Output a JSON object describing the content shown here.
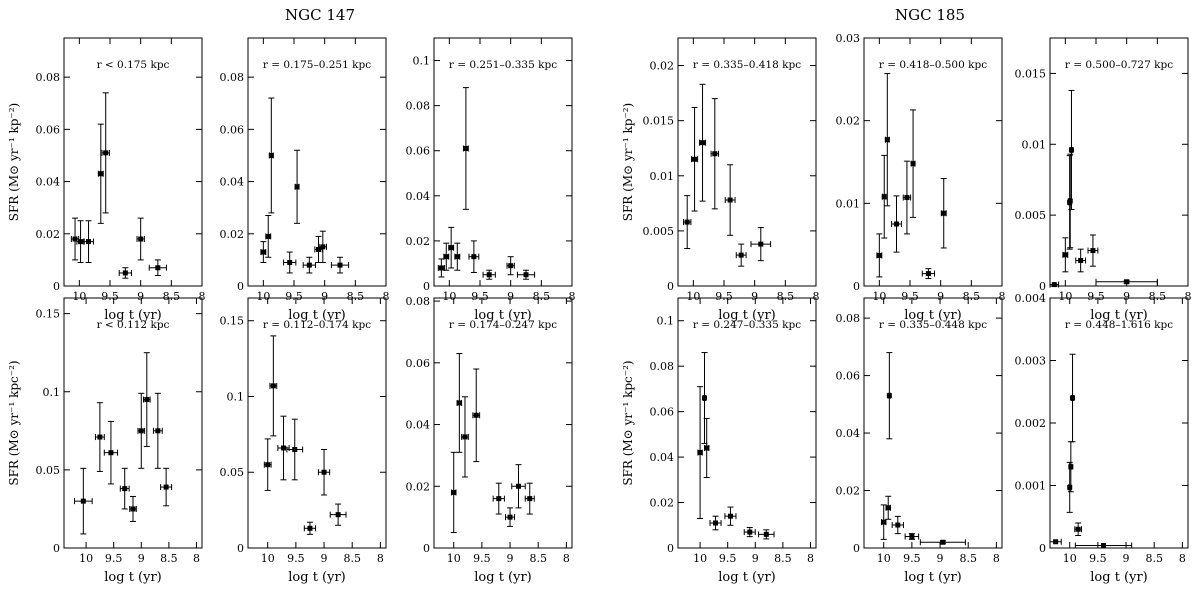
{
  "figure": {
    "left_title": "NGC 147",
    "right_title": "NGC 185",
    "xlabel": "log t (yr)",
    "ylabel_top": "SFR (M⊙ yr⁻¹ kp⁻²)",
    "ylabel_bottom": "SFR (M⊙ yr⁻¹ kpc⁻²)"
  },
  "chart_data": [
    {
      "type": "scatter",
      "galaxy": "NGC 147",
      "label": "r < 0.175 kpc",
      "xlim": [
        10.25,
        8
      ],
      "ylim": [
        0,
        0.095
      ],
      "xticks": [
        10,
        9.5,
        9,
        8.5,
        8
      ],
      "yticks": [
        0,
        0.02,
        0.04,
        0.06,
        0.08
      ],
      "points": [
        [
          10.07,
          0.018,
          0.06,
          0.008
        ],
        [
          9.98,
          0.017,
          0.06,
          0.008
        ],
        [
          9.85,
          0.017,
          0.08,
          0.008
        ],
        [
          9.65,
          0.043,
          0.04,
          0.019
        ],
        [
          9.57,
          0.051,
          0.06,
          0.023
        ],
        [
          9.25,
          0.005,
          0.1,
          0.002
        ],
        [
          9.0,
          0.018,
          0.06,
          0.008
        ],
        [
          8.72,
          0.007,
          0.14,
          0.003
        ]
      ]
    },
    {
      "type": "scatter",
      "galaxy": "NGC 147",
      "label": "r = 0.175–0.251 kpc",
      "xlim": [
        10.25,
        8
      ],
      "ylim": [
        0,
        0.095
      ],
      "xticks": [
        10,
        9.5,
        9,
        8.5,
        8
      ],
      "yticks": [
        0,
        0.02,
        0.04,
        0.06,
        0.08
      ],
      "points": [
        [
          10.0,
          0.013,
          0.04,
          0.004
        ],
        [
          9.92,
          0.019,
          0.04,
          0.008
        ],
        [
          9.87,
          0.05,
          0.03,
          0.022
        ],
        [
          9.57,
          0.009,
          0.1,
          0.004
        ],
        [
          9.45,
          0.038,
          0.03,
          0.014
        ],
        [
          9.25,
          0.008,
          0.1,
          0.003
        ],
        [
          9.1,
          0.014,
          0.06,
          0.005
        ],
        [
          9.03,
          0.015,
          0.06,
          0.006
        ],
        [
          8.75,
          0.008,
          0.14,
          0.003
        ]
      ]
    },
    {
      "type": "scatter",
      "galaxy": "NGC 147",
      "label": "r = 0.251–0.335 kpc",
      "xlim": [
        10.25,
        8
      ],
      "ylim": [
        0,
        0.11
      ],
      "xticks": [
        10,
        9.5,
        9,
        8.5,
        8
      ],
      "yticks": [
        0,
        0.02,
        0.04,
        0.06,
        0.08,
        0.1
      ],
      "points": [
        [
          10.13,
          0.008,
          0.05,
          0.004
        ],
        [
          10.05,
          0.013,
          0.04,
          0.006
        ],
        [
          9.97,
          0.017,
          0.04,
          0.009
        ],
        [
          9.87,
          0.013,
          0.04,
          0.006
        ],
        [
          9.73,
          0.061,
          0.04,
          0.027
        ],
        [
          9.6,
          0.013,
          0.08,
          0.007
        ],
        [
          9.35,
          0.005,
          0.1,
          0.002
        ],
        [
          9.0,
          0.009,
          0.06,
          0.004
        ],
        [
          8.75,
          0.005,
          0.14,
          0.002
        ]
      ]
    },
    {
      "type": "scatter",
      "galaxy": "NGC 147",
      "label": "r = 0.335–0.418 kpc",
      "xlim": [
        10.25,
        8
      ],
      "ylim": [
        0,
        0.0225
      ],
      "xticks": [
        10,
        9.5,
        9,
        8.5,
        8
      ],
      "yticks": [
        0,
        0.005,
        0.01,
        0.015,
        0.02
      ],
      "points": [
        [
          10.1,
          0.0058,
          0.06,
          0.0024
        ],
        [
          9.98,
          0.0115,
          0.05,
          0.0047
        ],
        [
          9.85,
          0.013,
          0.05,
          0.0053
        ],
        [
          9.65,
          0.012,
          0.06,
          0.005
        ],
        [
          9.4,
          0.0078,
          0.08,
          0.0032
        ],
        [
          9.22,
          0.0028,
          0.08,
          0.001
        ],
        [
          8.9,
          0.0038,
          0.16,
          0.0015
        ]
      ]
    },
    {
      "type": "scatter",
      "galaxy": "NGC 147",
      "label": "r = 0.418–0.500 kpc",
      "xlim": [
        10.25,
        8
      ],
      "ylim": [
        0,
        0.03
      ],
      "xticks": [
        10,
        9.5,
        9,
        8.5,
        8
      ],
      "yticks": [
        0,
        0.01,
        0.02,
        0.03
      ],
      "points": [
        [
          10.0,
          0.0037,
          0.04,
          0.0026
        ],
        [
          9.92,
          0.0108,
          0.03,
          0.005
        ],
        [
          9.87,
          0.0177,
          0.03,
          0.008
        ],
        [
          9.72,
          0.0075,
          0.08,
          0.0034
        ],
        [
          9.55,
          0.0107,
          0.06,
          0.0044
        ],
        [
          9.45,
          0.0148,
          0.03,
          0.0065
        ],
        [
          9.2,
          0.0015,
          0.1,
          0.0006
        ],
        [
          8.95,
          0.0088,
          0.04,
          0.0042
        ]
      ]
    },
    {
      "type": "scatter",
      "galaxy": "NGC 147",
      "label": "r = 0.500–0.727 kpc",
      "xlim": [
        10.25,
        8
      ],
      "ylim": [
        0,
        0.0175
      ],
      "xticks": [
        10,
        9.5,
        9,
        8.5,
        8
      ],
      "yticks": [
        0,
        0.005,
        0.01,
        0.015
      ],
      "points": [
        [
          10.18,
          0.0001,
          0.07,
          0.0
        ],
        [
          10.0,
          0.0022,
          0.04,
          0.0012
        ],
        [
          9.93,
          0.0059,
          0.02,
          0.0033
        ],
        [
          9.92,
          0.006,
          0.02,
          0.0033
        ],
        [
          9.9,
          0.0096,
          0.02,
          0.0042
        ],
        [
          9.75,
          0.0018,
          0.08,
          0.0008
        ],
        [
          9.55,
          0.0025,
          0.08,
          0.0011
        ],
        [
          9.0,
          0.0003,
          0.5,
          0.0001
        ]
      ]
    },
    {
      "type": "scatter",
      "galaxy": "NGC 185",
      "label": "r < 0.112 kpc",
      "xlim": [
        10.4,
        7.9
      ],
      "ylim": [
        0,
        0.16
      ],
      "xticks": [
        10,
        9.5,
        9,
        8.5,
        8
      ],
      "yticks": [
        0,
        0.05,
        0.1,
        0.15
      ],
      "points": [
        [
          10.05,
          0.03,
          0.16,
          0.021
        ],
        [
          9.75,
          0.071,
          0.08,
          0.022
        ],
        [
          9.55,
          0.061,
          0.12,
          0.02
        ],
        [
          9.3,
          0.038,
          0.08,
          0.013
        ],
        [
          9.15,
          0.025,
          0.06,
          0.008
        ],
        [
          9.0,
          0.075,
          0.06,
          0.024
        ],
        [
          8.9,
          0.095,
          0.06,
          0.03
        ],
        [
          8.7,
          0.075,
          0.08,
          0.024
        ],
        [
          8.55,
          0.039,
          0.1,
          0.012
        ]
      ]
    },
    {
      "type": "scatter",
      "galaxy": "NGC 185",
      "label": "r = 0.112–0.174 kpc",
      "xlim": [
        10.35,
        7.9
      ],
      "ylim": [
        0,
        0.165
      ],
      "xticks": [
        10,
        9.5,
        9,
        8.5,
        8
      ],
      "yticks": [
        0,
        0.05,
        0.1,
        0.15
      ],
      "points": [
        [
          10.0,
          0.055,
          0.06,
          0.017
        ],
        [
          9.9,
          0.107,
          0.06,
          0.033
        ],
        [
          9.72,
          0.066,
          0.1,
          0.021
        ],
        [
          9.52,
          0.065,
          0.14,
          0.02
        ],
        [
          9.25,
          0.013,
          0.1,
          0.004
        ],
        [
          9.0,
          0.05,
          0.1,
          0.015
        ],
        [
          8.75,
          0.022,
          0.14,
          0.007
        ]
      ]
    },
    {
      "type": "scatter",
      "galaxy": "NGC 185",
      "label": "r = 0.174–0.247 kpc",
      "xlim": [
        10.35,
        7.9
      ],
      "ylim": [
        0,
        0.081
      ],
      "xticks": [
        10,
        9.5,
        9,
        8.5,
        8
      ],
      "yticks": [
        0,
        0.02,
        0.04,
        0.06,
        0.08
      ],
      "points": [
        [
          10.0,
          0.018,
          0.04,
          0.013
        ],
        [
          9.9,
          0.047,
          0.04,
          0.016
        ],
        [
          9.8,
          0.036,
          0.06,
          0.013
        ],
        [
          9.6,
          0.043,
          0.06,
          0.015
        ],
        [
          9.2,
          0.016,
          0.1,
          0.005
        ],
        [
          9.0,
          0.01,
          0.08,
          0.003
        ],
        [
          8.85,
          0.02,
          0.12,
          0.007
        ],
        [
          8.65,
          0.016,
          0.08,
          0.005
        ]
      ]
    },
    {
      "type": "scatter",
      "galaxy": "NGC 185",
      "label": "r = 0.247–0.335 kpc",
      "xlim": [
        10.4,
        7.9
      ],
      "ylim": [
        0,
        0.11
      ],
      "xticks": [
        10,
        9.5,
        9,
        8.5,
        8
      ],
      "yticks": [
        0,
        0.02,
        0.04,
        0.06,
        0.08,
        0.1
      ],
      "points": [
        [
          10.0,
          0.042,
          0.04,
          0.029
        ],
        [
          9.92,
          0.066,
          0.02,
          0.02
        ],
        [
          9.88,
          0.044,
          0.04,
          0.013
        ],
        [
          9.72,
          0.011,
          0.1,
          0.003
        ],
        [
          9.45,
          0.014,
          0.1,
          0.004
        ],
        [
          9.1,
          0.007,
          0.1,
          0.002
        ],
        [
          8.8,
          0.006,
          0.14,
          0.002
        ]
      ]
    },
    {
      "type": "scatter",
      "galaxy": "NGC 185",
      "label": "r = 0.335–0.448 kpc",
      "xlim": [
        10.35,
        7.9
      ],
      "ylim": [
        0,
        0.087
      ],
      "xticks": [
        10,
        9.5,
        9,
        8.5,
        8
      ],
      "yticks": [
        0,
        0.02,
        0.04,
        0.06,
        0.08
      ],
      "points": [
        [
          10.0,
          0.009,
          0.04,
          0.006
        ],
        [
          9.92,
          0.014,
          0.04,
          0.004
        ],
        [
          9.75,
          0.008,
          0.1,
          0.003
        ],
        [
          9.5,
          0.004,
          0.12,
          0.001
        ],
        [
          8.95,
          0.002,
          0.4,
          0.0005
        ],
        [
          9.9,
          0.053,
          0.02,
          0.015
        ]
      ]
    },
    {
      "type": "scatter",
      "galaxy": "NGC 185",
      "label": "r = 0.448–1.616 kpc",
      "xlim": [
        10.35,
        7.9
      ],
      "ylim": [
        0,
        0.004
      ],
      "xticks": [
        10,
        9.5,
        9,
        8.5,
        8
      ],
      "yticks": [
        0,
        0.001,
        0.002,
        0.003,
        0.004
      ],
      "points": [
        [
          10.25,
          0.0001,
          0.1,
          0.0
        ],
        [
          10.0,
          0.00097,
          0.02,
          0.0004
        ],
        [
          9.98,
          0.0013,
          0.02,
          0.0004
        ],
        [
          9.95,
          0.0024,
          0.02,
          0.0007
        ],
        [
          9.85,
          0.0003,
          0.06,
          0.0001
        ],
        [
          9.4,
          4e-05,
          0.5,
          0.0
        ]
      ]
    }
  ]
}
